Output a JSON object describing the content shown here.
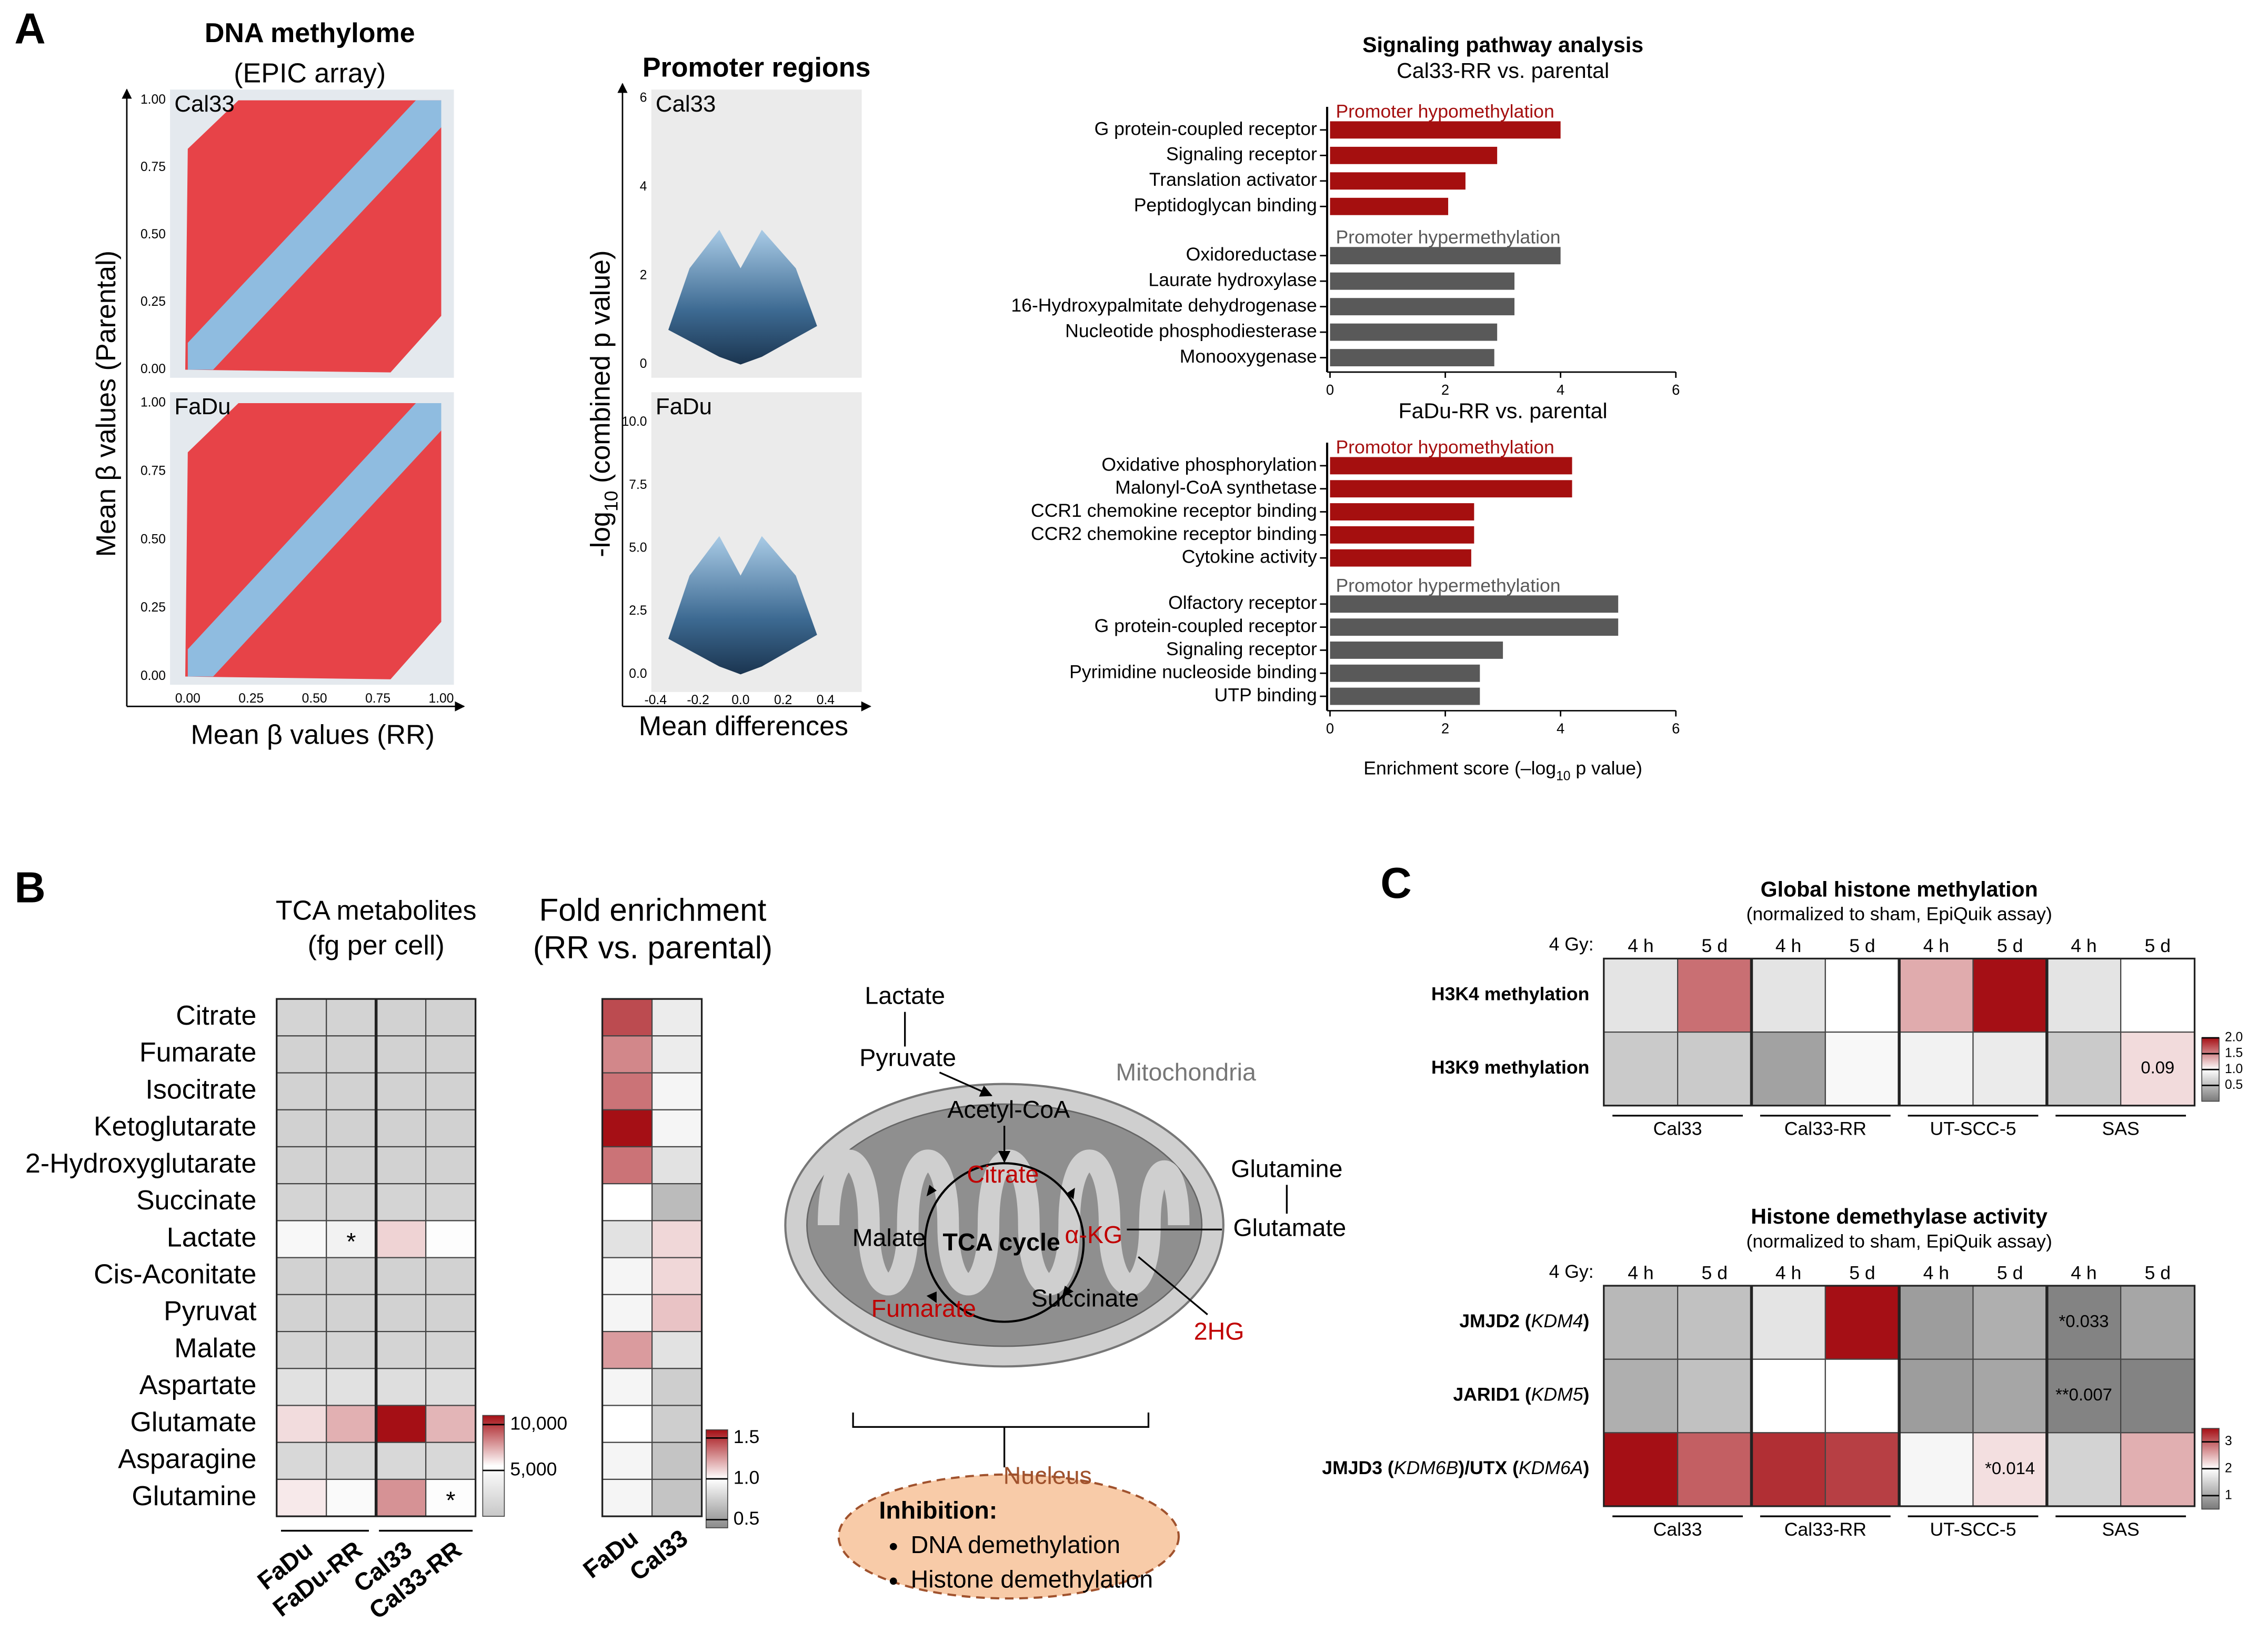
{
  "panel_labels": [
    "A",
    "B",
    "C"
  ],
  "chart_data": [
    {
      "type": "scatter",
      "title": "DNA methylome",
      "subtitle": "(EPIC array)",
      "xlabel": "Mean β values (RR)",
      "ylabel": "Mean β values (Parental)",
      "xlim": [
        -0.07,
        1.05
      ],
      "ylim": [
        -0.03,
        1.04
      ],
      "xticks": [
        {
          "value": 0,
          "label": "0.00"
        },
        0.25,
        {
          "value": 0.5,
          "label": "0.50"
        },
        0.75,
        {
          "value": 1,
          "label": "1.00"
        }
      ],
      "panels": [
        {
          "label": "Cal33",
          "yticks": [
            {
              "value": 0,
              "label": "0.00"
            },
            0.25,
            {
              "value": 0.5,
              "label": "0.50"
            },
            0.75,
            {
              "value": 1,
              "label": "1.00"
            }
          ]
        },
        {
          "label": "FaDu",
          "yticks": [
            {
              "value": 0,
              "label": "0.00"
            },
            0.25,
            {
              "value": 0.5,
              "label": "0.50"
            },
            0.75,
            {
              "value": 1,
              "label": "1.00"
            }
          ]
        }
      ]
    },
    {
      "type": "volcano",
      "title": "Promoter regions",
      "xlabel": "Mean differences",
      "ylabel": [
        "-log",
        "10",
        " (combined p value)"
      ],
      "xlim": [
        -0.42,
        0.57
      ],
      "xticks": [
        -0.4,
        -0.2,
        {
          "value": 0,
          "label": "0.0"
        },
        0.2,
        0.4
      ],
      "panels": [
        {
          "label": "Cal33",
          "ylim": [
            -0.3,
            6.2
          ],
          "yticks": [
            0,
            2,
            4,
            6
          ]
        },
        {
          "label": "FaDu",
          "ylim": [
            -0.7,
            11.2
          ],
          "yticks": [
            {
              "value": 0,
              "label": "0.0"
            },
            2.5,
            {
              "value": 5,
              "label": "5.0"
            },
            7.5,
            {
              "value": 10,
              "label": "10.0"
            }
          ]
        }
      ]
    },
    {
      "type": "hbar",
      "title": "Signaling pathway analysis",
      "xlabel": [
        "Enrichment score (–log",
        "10",
        " p value)"
      ],
      "xlim": [
        0,
        6
      ],
      "xticks": [
        0,
        2,
        4,
        6
      ],
      "panels": [
        {
          "subtitle": "Cal33-RR vs. parental",
          "groups": [
            {
              "name": "Promoter hypomethylation",
              "color": "#a50f0f",
              "categories": [
                "G protein-coupled receptor",
                "Signaling receptor",
                "Translation activator",
                "Peptidoglycan binding"
              ],
              "values": [
                4.0,
                2.9,
                2.35,
                2.05
              ]
            },
            {
              "name": "Promoter hypermethylation",
              "color": "#595959",
              "categories": [
                "Oxidoreductase",
                "Laurate hydroxylase",
                "16-Hydroxypalmitate dehydrogenase",
                "Nucleotide phosphodiesterase",
                "Monooxygenase"
              ],
              "values": [
                4.0,
                3.2,
                3.2,
                2.9,
                2.85
              ]
            }
          ]
        },
        {
          "subtitle": "FaDu-RR vs. parental",
          "groups": [
            {
              "name": "Promotor hypomethylation",
              "color": "#a50f0f",
              "categories": [
                "Oxidative phosphorylation",
                "Malonyl-CoA synthetase",
                "CCR1 chemokine receptor binding",
                "CCR2 chemokine receptor binding",
                "Cytokine activity"
              ],
              "values": [
                4.2,
                4.2,
                2.5,
                2.5,
                2.45
              ]
            },
            {
              "name": "Promotor hypermethylation",
              "color": "#595959",
              "categories": [
                "Olfactory receptor",
                "G protein-coupled receptor",
                "Signaling receptor",
                "Pyrimidine nucleoside binding",
                "UTP binding"
              ],
              "values": [
                5.0,
                5.0,
                3.0,
                2.6,
                2.6
              ]
            }
          ]
        }
      ]
    },
    {
      "type": "heatmap",
      "title": [
        "TCA metabolites",
        "(fg per cell)"
      ],
      "rows": [
        "Citrate",
        "Fumarate",
        "Isocitrate",
        "Ketoglutarate",
        "2-Hydroxyglutarate",
        "Succinate",
        "Lactate",
        "Cis-Aconitate",
        "Pyruvat",
        "Malate",
        "Aspartate",
        "Glutamate",
        "Asparagine",
        "Glutamine"
      ],
      "columns": [
        "FaDu",
        "FaDu-RR",
        "Cal33",
        "Cal33-RR"
      ],
      "values": [
        [
          1200,
          1100,
          1000,
          1000
        ],
        [
          1000,
          1000,
          1000,
          1000
        ],
        [
          1000,
          1000,
          1000,
          1000
        ],
        [
          900,
          900,
          900,
          900
        ],
        [
          1000,
          1000,
          1000,
          1000
        ],
        [
          1200,
          1200,
          1200,
          1200
        ],
        [
          4800,
          4200,
          6500,
          5300
        ],
        [
          1000,
          1000,
          1000,
          1000
        ],
        [
          1000,
          1000,
          1000,
          1000
        ],
        [
          1200,
          1200,
          1200,
          1200
        ],
        [
          2500,
          2500,
          2200,
          2200
        ],
        [
          6300,
          7300,
          11000,
          7200
        ],
        [
          1600,
          1600,
          1600,
          1600
        ],
        [
          6000,
          5000,
          8000,
          5300
        ]
      ],
      "annotations": [
        [
          null,
          null,
          null,
          null
        ],
        [
          null,
          null,
          null,
          null
        ],
        [
          null,
          null,
          null,
          null
        ],
        [
          null,
          null,
          null,
          null
        ],
        [
          null,
          null,
          null,
          null
        ],
        [
          null,
          null,
          null,
          null
        ],
        [
          null,
          "*",
          null,
          null
        ],
        [
          null,
          null,
          null,
          null
        ],
        [
          null,
          null,
          null,
          null
        ],
        [
          null,
          null,
          null,
          null
        ],
        [
          null,
          null,
          null,
          null
        ],
        [
          null,
          null,
          null,
          null
        ],
        [
          null,
          null,
          null,
          null
        ],
        [
          null,
          null,
          null,
          "*"
        ]
      ],
      "clim": [
        0,
        11000
      ],
      "colors": [
        "#c8c8c8",
        "#ffffff",
        "#a50f15"
      ],
      "cbar_ticks": [
        {
          "value": 5000,
          "label": "5,000"
        },
        {
          "value": 10000,
          "label": "10,000"
        }
      ]
    },
    {
      "type": "heatmap",
      "title": [
        "Fold enrichment",
        "(RR vs. parental)"
      ],
      "columns": [
        "FaDu",
        "Cal33"
      ],
      "values": [
        [
          1.45,
          0.9
        ],
        [
          1.3,
          0.9
        ],
        [
          1.35,
          0.95
        ],
        [
          1.6,
          0.95
        ],
        [
          1.35,
          0.85
        ],
        [
          1.0,
          0.65
        ],
        [
          0.85,
          1.1
        ],
        [
          0.95,
          1.1
        ],
        [
          0.95,
          1.15
        ],
        [
          1.25,
          0.85
        ],
        [
          0.95,
          0.75
        ],
        [
          1.0,
          0.75
        ],
        [
          0.95,
          0.7
        ],
        [
          0.95,
          0.7
        ]
      ],
      "clim": [
        0.4,
        1.6
      ],
      "colors": [
        "#8a8a8a",
        "#ffffff",
        "#a50f15"
      ],
      "cbar_ticks": [
        0.5,
        {
          "value": 1,
          "label": "1.0"
        },
        1.5
      ]
    },
    {
      "type": "heatmap",
      "title": [
        "Global histone methylation",
        "(normalized to sham, EpiQuik assay)"
      ],
      "dose_label": "4 Gy:",
      "rows": [
        [
          "H3K4 methylation"
        ],
        [
          "H3K9 methylation"
        ]
      ],
      "columns": [
        "4 h",
        "5 d",
        "4 h",
        "5 d",
        "4 h",
        "5 d",
        "4 h",
        "5 d"
      ],
      "groups": [
        "Cal33",
        "Cal33-RR",
        "UT-SCC-5",
        "SAS"
      ],
      "values": [
        [
          0.8,
          1.6,
          0.8,
          1.0,
          1.35,
          2.2,
          0.8,
          1.0
        ],
        [
          0.6,
          0.6,
          0.3,
          0.95,
          0.9,
          0.85,
          0.6,
          1.15
        ]
      ],
      "annotations": [
        [
          null,
          null,
          null,
          null,
          null,
          null,
          null,
          null
        ],
        [
          null,
          null,
          null,
          null,
          null,
          null,
          null,
          "0.09"
        ]
      ],
      "clim": [
        0,
        2
      ],
      "colors": [
        "#7a7a7a",
        "#ffffff",
        "#a50f15"
      ],
      "cbar_ticks": [
        0.5,
        {
          "value": 1,
          "label": "1.0"
        },
        1.5,
        {
          "value": 2,
          "label": "2.0"
        }
      ]
    },
    {
      "type": "heatmap",
      "title": [
        "Histone demethylase activity",
        "(normalized to sham, EpiQuik assay)"
      ],
      "dose_label": "4 Gy:",
      "rows": [
        [
          "JMJD2 (",
          "KDM4",
          ")"
        ],
        [
          "JARID1 (",
          "KDM5",
          ")"
        ],
        [
          "JMJD3 (",
          "KDM6B",
          ")/UTX (",
          "KDM6A",
          ")"
        ]
      ],
      "columns": [
        "4 h",
        "5 d",
        "4 h",
        "5 d",
        "4 h",
        "5 d",
        "4 h",
        "5 d"
      ],
      "groups": [
        "Cal33",
        "Cal33-RR",
        "UT-SCC-5",
        "SAS"
      ],
      "values": [
        [
          1.2,
          1.3,
          1.7,
          3.5,
          0.9,
          1.1,
          0.6,
          1.0
        ],
        [
          1.1,
          1.3,
          2.0,
          2.0,
          0.9,
          1.0,
          0.6,
          0.6
        ],
        [
          3.5,
          3.0,
          3.3,
          3.2,
          1.9,
          2.2,
          1.5,
          2.5
        ]
      ],
      "annotations": [
        [
          null,
          null,
          null,
          null,
          null,
          null,
          "*0.033",
          null
        ],
        [
          null,
          null,
          null,
          null,
          null,
          null,
          "**0.007",
          null
        ],
        [
          null,
          null,
          null,
          null,
          null,
          "*0.014",
          null,
          null
        ]
      ],
      "clim": [
        0.5,
        3.5
      ],
      "colors": [
        "#7a7a7a",
        "#ffffff",
        "#a50f15"
      ],
      "cbar_ticks": [
        1,
        2,
        3
      ]
    }
  ],
  "diagram": {
    "lactate": "Lactate",
    "pyruvate": "Pyruvate",
    "mitochondria": "Mitochondria",
    "acetyl_coa": "Acetyl-CoA",
    "citrate": "Citrate",
    "tca_cycle": "TCA cycle",
    "alpha_kg": "α-KG",
    "malate": "Malate",
    "fumarate": "Fumarate",
    "succinate": "Succinate",
    "glutamine": "Glutamine",
    "glutamate": "Glutamate",
    "hg2": "2HG",
    "nucleus": "Nucleus",
    "inhibition": "Inhibition:",
    "items": [
      "DNA demethylation",
      "Histone demethylation"
    ]
  }
}
